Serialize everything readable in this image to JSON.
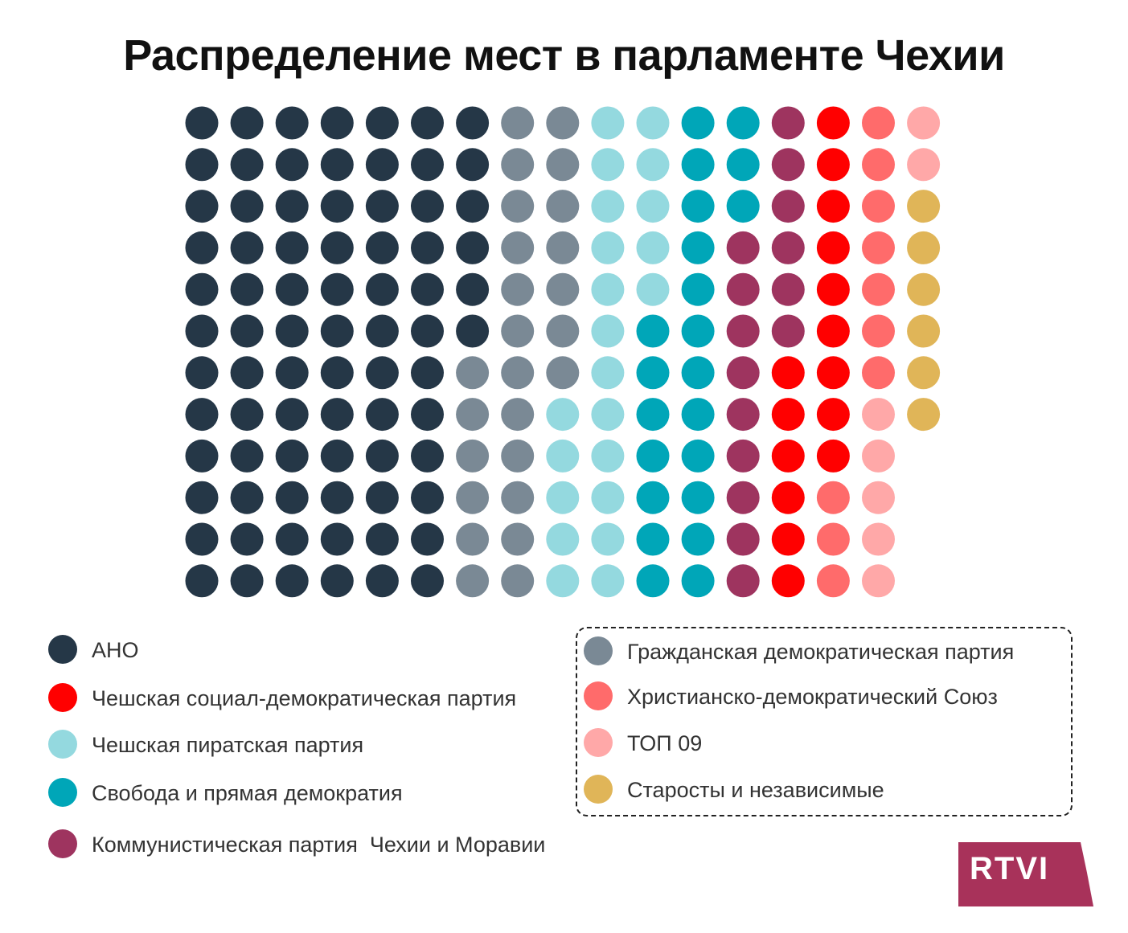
{
  "title": "Распределение мест в парламенте Чехии",
  "chart_data": {
    "type": "waffle",
    "title": "Распределение мест в парламенте Чехии",
    "unit": "seats",
    "total": 200,
    "grid": {
      "rows": 12,
      "columns": 17,
      "fill_order": "column-major, top to bottom"
    },
    "series": [
      {
        "key": "ano",
        "name": "АНО",
        "value": 78,
        "color": "#253747"
      },
      {
        "key": "ods",
        "name": "Гражданская демократическая партия",
        "value": 25,
        "color": "#7a8995"
      },
      {
        "key": "pirati",
        "name": "Чешская пиратская партия",
        "value": 22,
        "color": "#94d9df"
      },
      {
        "key": "spd",
        "name": "Свобода и прямая демократия",
        "value": 22,
        "color": "#00a6b8"
      },
      {
        "key": "kscm",
        "name": "Коммунистическая партия  Чехии и Моравии",
        "value": 15,
        "color": "#9e345f"
      },
      {
        "key": "cssd",
        "name": "Чешская социал-демократическая партия",
        "value": 15,
        "color": "#ff0000"
      },
      {
        "key": "kdu",
        "name": "Христианско-демократический Союз",
        "value": 10,
        "color": "#ff6b6b"
      },
      {
        "key": "top09",
        "name": "ТОП 09",
        "value": 7,
        "color": "#ffa8a8"
      },
      {
        "key": "stan",
        "name": "Старосты и независимые",
        "value": 6,
        "color": "#e0b558"
      }
    ]
  },
  "legend": {
    "left": [
      {
        "key": "ano",
        "label": "АНО"
      },
      {
        "key": "cssd",
        "label": "Чешская социал-демократическая партия"
      },
      {
        "key": "pirati",
        "label": "Чешская пиратская партия"
      },
      {
        "key": "spd",
        "label": "Свобода и прямая демократия"
      },
      {
        "key": "kscm",
        "label": "Коммунистическая партия  Чехии и Моравии"
      }
    ],
    "right_boxed": [
      {
        "key": "ods",
        "label": "Гражданская демократическая партия"
      },
      {
        "key": "kdu",
        "label": "Христианско-демократический Союз"
      },
      {
        "key": "top09",
        "label": "ТОП 09"
      },
      {
        "key": "stan",
        "label": "Старосты и независимые"
      }
    ]
  },
  "logo": {
    "text": "RTVI",
    "color": "#a8325a"
  }
}
